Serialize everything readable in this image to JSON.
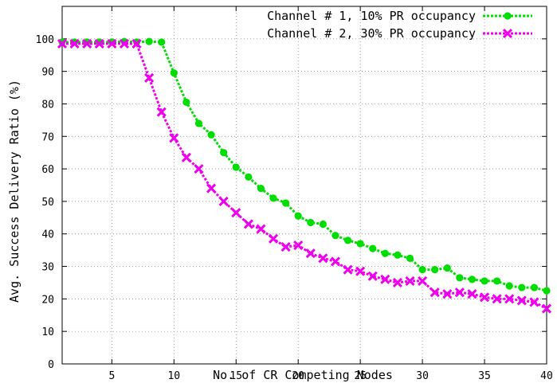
{
  "chart_data": {
    "type": "line",
    "title": "",
    "xlabel": "No. of CR Competing Nodes",
    "ylabel": "Avg. Success Delivery Ratio (%)",
    "xlim": [
      1,
      40
    ],
    "ylim": [
      0,
      110
    ],
    "xticks": [
      5,
      10,
      15,
      20,
      25,
      30,
      35,
      40
    ],
    "yticks": [
      0,
      10,
      20,
      30,
      40,
      50,
      60,
      70,
      80,
      90,
      100
    ],
    "grid": true,
    "legend_position": "top-right",
    "x": [
      1,
      2,
      3,
      4,
      5,
      6,
      7,
      8,
      9,
      10,
      11,
      12,
      13,
      14,
      15,
      16,
      17,
      18,
      19,
      20,
      21,
      22,
      23,
      24,
      25,
      26,
      27,
      28,
      29,
      30,
      31,
      32,
      33,
      34,
      35,
      36,
      37,
      38,
      39,
      40
    ],
    "series": [
      {
        "name": "Channel # 1, 10% PR occupancy",
        "color": "#00dd00",
        "marker": "circle",
        "line_style": "dotted",
        "values": [
          99,
          99,
          99,
          99,
          99,
          99.2,
          99,
          99.2,
          99,
          89.5,
          80.5,
          74,
          70.5,
          65,
          60.5,
          57.5,
          54,
          51,
          49.5,
          45.5,
          43.5,
          43,
          39.5,
          38,
          37,
          35.5,
          34,
          33.5,
          32.5,
          29,
          29,
          29.5,
          26.5,
          26,
          25.5,
          25.5,
          24,
          23.5,
          23.5,
          22.5
        ]
      },
      {
        "name": "Channel # 2, 30% PR occupancy",
        "color": "#ee00ee",
        "marker": "x",
        "line_style": "dotted",
        "values": [
          98.5,
          98.5,
          98.5,
          98.5,
          98.5,
          98.5,
          98.5,
          88,
          77.5,
          69.5,
          63.5,
          60,
          54,
          50,
          46.5,
          43,
          41.5,
          38.5,
          36,
          36.5,
          34,
          32.5,
          31.5,
          29,
          28.5,
          27,
          26,
          25,
          25.5,
          25.5,
          22,
          21.5,
          22,
          21.5,
          20.5,
          20,
          20,
          19.5,
          19,
          17
        ]
      }
    ]
  }
}
